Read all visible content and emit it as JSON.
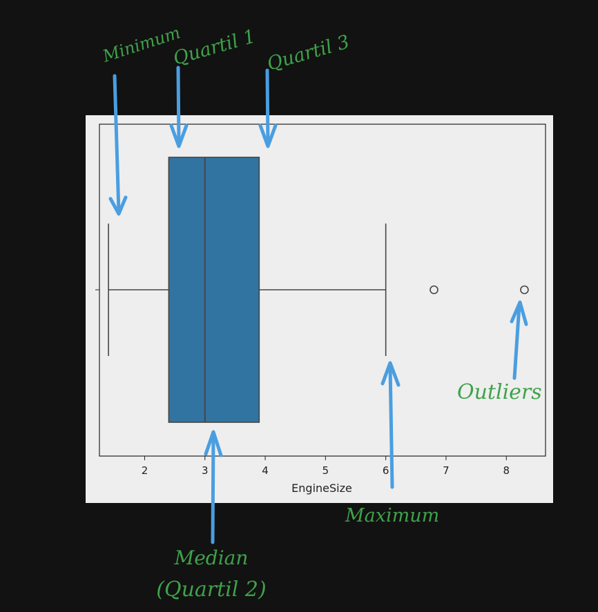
{
  "chart_data": {
    "type": "boxplot",
    "xlabel": "EngineSize",
    "xticks": [
      2,
      3,
      4,
      5,
      6,
      7,
      8
    ],
    "xlim": [
      1.25,
      8.65
    ],
    "grid": false,
    "box_color": "#3274a1",
    "whisker_low": 1.4,
    "q1": 2.4,
    "median": 3.0,
    "q3": 3.9,
    "whisker_high": 6.0,
    "outliers": [
      6.8,
      8.3
    ]
  },
  "annotations": {
    "minimum": "Minimum",
    "quartile1": "Quartil 1",
    "quartile3": "Quartil 3",
    "outliers": "Outliers",
    "maximum": "Maximum",
    "median_line1": "Median",
    "median_line2": "(Quartil 2)",
    "text_color": "#3fa24a",
    "arrow_color": "#4a9ee0"
  }
}
